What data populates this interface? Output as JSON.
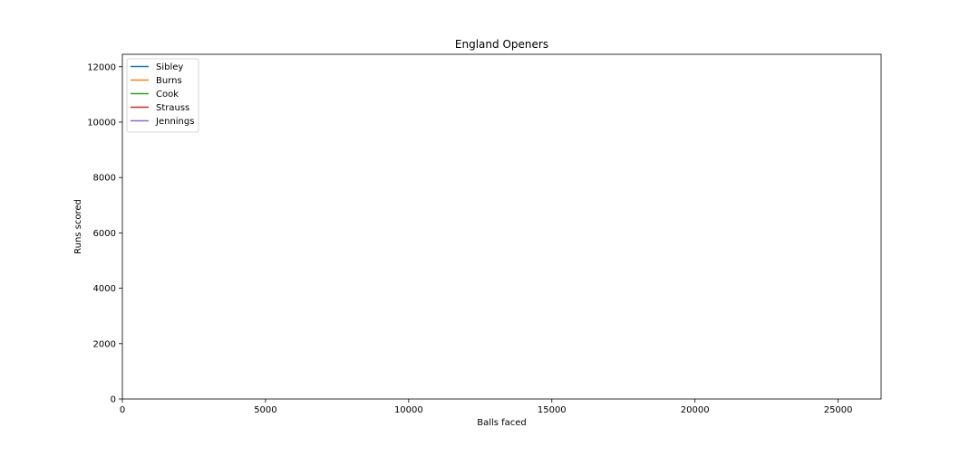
{
  "chart_data": {
    "type": "line",
    "title": "England Openers",
    "xlabel": "Balls faced",
    "ylabel": "Runs scored",
    "xlim": [
      0,
      26500
    ],
    "ylim": [
      0,
      12450
    ],
    "xticks": [
      0,
      5000,
      10000,
      15000,
      20000,
      25000
    ],
    "yticks": [
      0,
      2000,
      4000,
      6000,
      8000,
      10000,
      12000
    ],
    "grid": false,
    "legend_position": "top-left",
    "series": [
      {
        "name": "Sibley",
        "color": "#1f77b4",
        "x": [],
        "y": []
      },
      {
        "name": "Burns",
        "color": "#ff7f0e",
        "x": [],
        "y": []
      },
      {
        "name": "Cook",
        "color": "#2ca02c",
        "x": [],
        "y": []
      },
      {
        "name": "Strauss",
        "color": "#d62728",
        "x": [],
        "y": []
      },
      {
        "name": "Jennings",
        "color": "#9467bd",
        "x": [],
        "y": []
      }
    ]
  }
}
